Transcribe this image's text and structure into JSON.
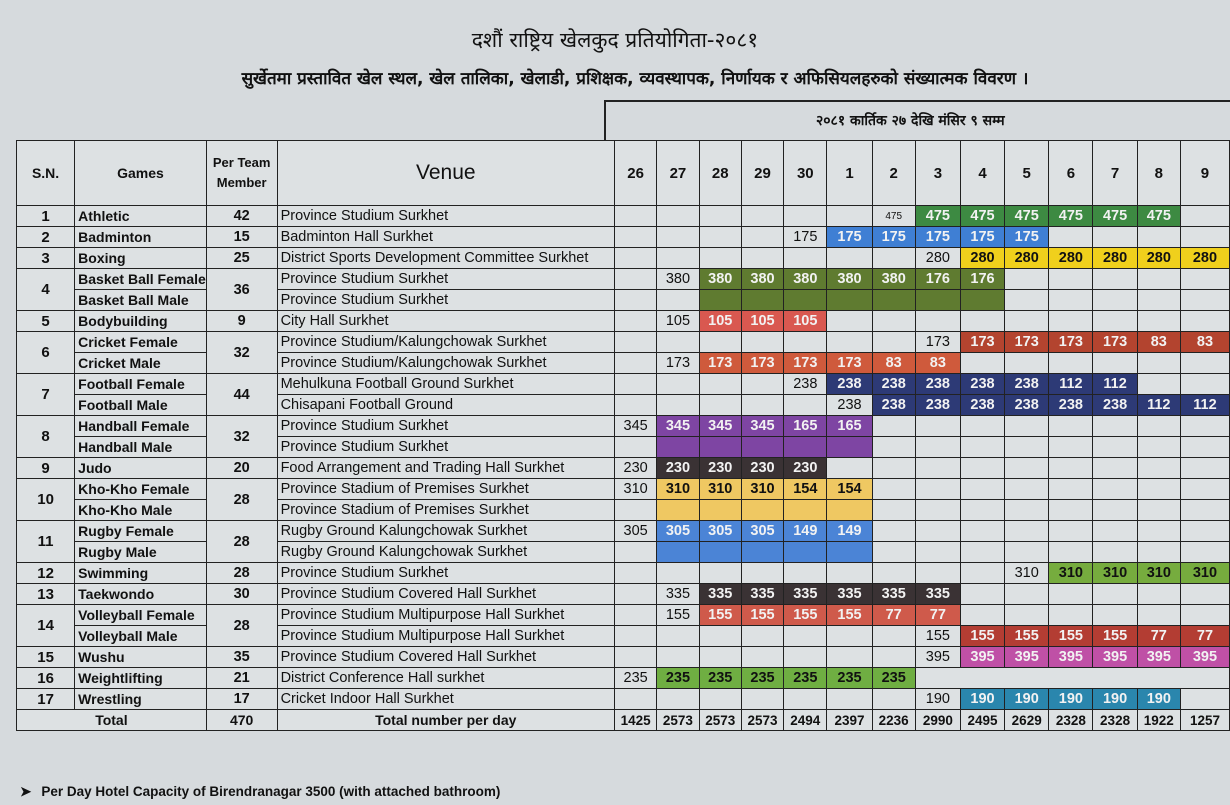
{
  "title": "दशौं राष्ट्रिय खेलकुद प्रतियोगिता-२०८१",
  "subtitle": "सुर्खेतमा प्रस्तावित खेल स्थल, खेल तालिका, खेलाडी, प्रशिक्षक, व्यवस्थापक, निर्णायक र अफिसियलहरुको संख्यात्मक विवरण ।",
  "date_range": "२०८१ कार्तिक २७ देखि मंसिर ९ सम्म",
  "headers": {
    "sn": "S.N.",
    "games": "Games",
    "per_team": "Per Team Member",
    "venue": "Venue"
  },
  "days": [
    "26",
    "27",
    "28",
    "29",
    "30",
    "1",
    "2",
    "3",
    "4",
    "5",
    "6",
    "7",
    "8",
    "9"
  ],
  "colors": {
    "green": "#3d8a42",
    "blue": "#3f7fd4",
    "yellow": "#f0d01c",
    "olive": "#5f7b30",
    "salmon": "#d95850",
    "brick": "#b3442f",
    "orange": "#cf5a3c",
    "navy": "#2d3a76",
    "purple": "#7e45a3",
    "dark": "#3a3234",
    "gold": "#efc862",
    "sky": "#4b84d6",
    "lime": "#76ac3e",
    "red": "#cf5a4b",
    "darkred": "#b33d33",
    "magenta": "#bf50a6",
    "leaf": "#6fae42",
    "teal": "#2a86ad"
  },
  "rows": [
    {
      "sn": "1",
      "game": "Athletic",
      "per_team": "42",
      "venue": "Province Studium Surkhet",
      "values": [
        "",
        "",
        "",
        "",
        "",
        "",
        "475",
        "475",
        "475",
        "475",
        "475",
        "475",
        "475",
        ""
      ],
      "fill": [
        "",
        "",
        "",
        "",
        "",
        "",
        "",
        "green",
        "green",
        "green",
        "green",
        "green",
        "green",
        ""
      ]
    },
    {
      "sn": "2",
      "game": "Badminton",
      "per_team": "15",
      "venue": "Badminton Hall Surkhet",
      "values": [
        "",
        "",
        "",
        "",
        "175",
        "175",
        "175",
        "175",
        "175",
        "175",
        "",
        "",
        "",
        ""
      ],
      "fill": [
        "",
        "",
        "",
        "",
        "",
        "blue",
        "blue",
        "blue",
        "blue",
        "blue",
        "",
        "",
        "",
        ""
      ]
    },
    {
      "sn": "3",
      "game": "Boxing",
      "per_team": "25",
      "venue": "District Sports Development Committee Surkhet",
      "values": [
        "",
        "",
        "",
        "",
        "",
        "",
        "",
        "280",
        "280",
        "280",
        "280",
        "280",
        "280",
        "280"
      ],
      "fill": [
        "",
        "",
        "",
        "",
        "",
        "",
        "",
        "",
        "yellow",
        "yellow",
        "yellow",
        "yellow",
        "yellow",
        "yellow"
      ]
    },
    {
      "sn": "4",
      "game": "Basket Ball Female",
      "per_team": "36",
      "venue": "Province Studium Surkhet",
      "values": [
        "",
        "380",
        "380",
        "380",
        "380",
        "380",
        "380",
        "176",
        "176",
        "",
        "",
        "",
        "",
        ""
      ],
      "fill": [
        "",
        "",
        "olive",
        "olive",
        "olive",
        "olive",
        "olive",
        "olive",
        "olive",
        "",
        "",
        "",
        "",
        ""
      ]
    },
    {
      "game": "Basket Ball Male",
      "venue": "Province Studium Surkhet",
      "values": [
        "",
        "",
        "",
        "",
        "",
        "",
        "",
        "",
        "",
        "",
        "",
        "",
        "",
        ""
      ],
      "fill": [
        "",
        "",
        "olive",
        "olive",
        "olive",
        "olive",
        "olive",
        "olive",
        "olive",
        "",
        "",
        "",
        "",
        ""
      ]
    },
    {
      "sn": "5",
      "game": "Bodybuilding",
      "per_team": "9",
      "venue": "City Hall Surkhet",
      "values": [
        "",
        "105",
        "105",
        "105",
        "105",
        "",
        "",
        "",
        "",
        "",
        "",
        "",
        "",
        ""
      ],
      "fill": [
        "",
        "",
        "salmon",
        "salmon",
        "salmon",
        "",
        "",
        "",
        "",
        "",
        "",
        "",
        "",
        ""
      ]
    },
    {
      "sn": "6",
      "game": "Cricket Female",
      "per_team": "32",
      "venue": "Province Studium/Kalungchowak Surkhet",
      "values": [
        "",
        "",
        "",
        "",
        "",
        "",
        "",
        "173",
        "173",
        "173",
        "173",
        "173",
        "83",
        "83"
      ],
      "fill": [
        "",
        "",
        "",
        "",
        "",
        "",
        "",
        "",
        "brick",
        "brick",
        "brick",
        "brick",
        "brick",
        "brick"
      ]
    },
    {
      "game": "Cricket Male",
      "venue": "Province Studium/Kalungchowak Surkhet",
      "values": [
        "",
        "173",
        "173",
        "173",
        "173",
        "173",
        "83",
        "83",
        "",
        "",
        "",
        "",
        "",
        ""
      ],
      "fill": [
        "",
        "",
        "orange",
        "orange",
        "orange",
        "orange",
        "orange",
        "orange",
        "",
        "",
        "",
        "",
        "",
        ""
      ]
    },
    {
      "sn": "7",
      "game": "Football Female",
      "per_team": "44",
      "venue": "Mehulkuna Football Ground Surkhet",
      "values": [
        "",
        "",
        "",
        "",
        "238",
        "238",
        "238",
        "238",
        "238",
        "238",
        "112",
        "112",
        "",
        ""
      ],
      "fill": [
        "",
        "",
        "",
        "",
        "",
        "navy",
        "navy",
        "navy",
        "navy",
        "navy",
        "navy",
        "navy",
        "",
        ""
      ]
    },
    {
      "game": "Football Male",
      "venue": "Chisapani Football Ground",
      "values": [
        "",
        "",
        "",
        "",
        "",
        "238",
        "238",
        "238",
        "238",
        "238",
        "238",
        "238",
        "112",
        "112"
      ],
      "fill": [
        "",
        "",
        "",
        "",
        "",
        "",
        "navy",
        "navy",
        "navy",
        "navy",
        "navy",
        "navy",
        "navy",
        "navy"
      ]
    },
    {
      "sn": "8",
      "game": "Handball Female",
      "per_team": "32",
      "venue": "Province Studium Surkhet",
      "values": [
        "345",
        "345",
        "345",
        "345",
        "165",
        "165",
        "",
        "",
        "",
        "",
        "",
        "",
        "",
        ""
      ],
      "fill": [
        "",
        "purple",
        "purple",
        "purple",
        "purple",
        "purple",
        "",
        "",
        "",
        "",
        "",
        "",
        "",
        ""
      ]
    },
    {
      "game": "Handball Male",
      "venue": "Province Studium Surkhet",
      "values": [
        "",
        "",
        "",
        "",
        "",
        "",
        "",
        "",
        "",
        "",
        "",
        "",
        "",
        ""
      ],
      "fill": [
        "",
        "purple",
        "purple",
        "purple",
        "purple",
        "purple",
        "",
        "",
        "",
        "",
        "",
        "",
        "",
        ""
      ]
    },
    {
      "sn": "9",
      "game": "Judo",
      "per_team": "20",
      "venue": "Food Arrangement and Trading Hall Surkhet",
      "values": [
        "230",
        "230",
        "230",
        "230",
        "230",
        "",
        "",
        "",
        "",
        "",
        "",
        "",
        "",
        ""
      ],
      "fill": [
        "",
        "dark",
        "dark",
        "dark",
        "dark",
        "",
        "",
        "",
        "",
        "",
        "",
        "",
        "",
        ""
      ]
    },
    {
      "sn": "10",
      "game": "Kho-Kho Female",
      "per_team": "28",
      "venue": "Province Stadium of Premises Surkhet",
      "values": [
        "310",
        "310",
        "310",
        "310",
        "154",
        "154",
        "",
        "",
        "",
        "",
        "",
        "",
        "",
        ""
      ],
      "fill": [
        "",
        "gold",
        "gold",
        "gold",
        "gold",
        "gold",
        "",
        "",
        "",
        "",
        "",
        "",
        "",
        ""
      ]
    },
    {
      "game": "Kho-Kho Male",
      "venue": "Province Stadium of Premises Surkhet",
      "values": [
        "",
        "",
        "",
        "",
        "",
        "",
        "",
        "",
        "",
        "",
        "",
        "",
        "",
        ""
      ],
      "fill": [
        "",
        "gold",
        "gold",
        "gold",
        "gold",
        "gold",
        "",
        "",
        "",
        "",
        "",
        "",
        "",
        ""
      ]
    },
    {
      "sn": "11",
      "game": "Rugby Female",
      "per_team": "28",
      "venue": "Rugby Ground Kalungchowak Surkhet",
      "values": [
        "305",
        "305",
        "305",
        "305",
        "149",
        "149",
        "",
        "",
        "",
        "",
        "",
        "",
        "",
        ""
      ],
      "fill": [
        "",
        "sky",
        "sky",
        "sky",
        "sky",
        "sky",
        "",
        "",
        "",
        "",
        "",
        "",
        "",
        ""
      ]
    },
    {
      "game": "Rugby Male",
      "venue": "Rugby Ground Kalungchowak Surkhet",
      "values": [
        "",
        "",
        "",
        "",
        "",
        "",
        "",
        "",
        "",
        "",
        "",
        "",
        "",
        ""
      ],
      "fill": [
        "",
        "sky",
        "sky",
        "sky",
        "sky",
        "sky",
        "",
        "",
        "",
        "",
        "",
        "",
        "",
        ""
      ]
    },
    {
      "sn": "12",
      "game": "Swimming",
      "per_team": "28",
      "venue": "Province Studium Surkhet",
      "values": [
        "",
        "",
        "",
        "",
        "",
        "",
        "",
        "",
        "",
        "310",
        "310",
        "310",
        "310",
        "310"
      ],
      "fill": [
        "",
        "",
        "",
        "",
        "",
        "",
        "",
        "",
        "",
        "",
        "lime",
        "lime",
        "lime",
        "lime"
      ]
    },
    {
      "sn": "13",
      "game": "Taekwondo",
      "per_team": "30",
      "venue": "Province Studium Covered Hall Surkhet",
      "values": [
        "",
        "335",
        "335",
        "335",
        "335",
        "335",
        "335",
        "335",
        "",
        "",
        "",
        "",
        "",
        ""
      ],
      "fill": [
        "",
        "",
        "dark",
        "dark",
        "dark",
        "dark",
        "dark",
        "dark",
        "",
        "",
        "",
        "",
        "",
        ""
      ]
    },
    {
      "sn": "14",
      "game": "Volleyball Female",
      "per_team": "28",
      "venue": "Province Studium Multipurpose Hall Surkhet",
      "values": [
        "",
        "155",
        "155",
        "155",
        "155",
        "155",
        "77",
        "77",
        "",
        "",
        "",
        "",
        "",
        ""
      ],
      "fill": [
        "",
        "",
        "red",
        "red",
        "red",
        "red",
        "red",
        "red",
        "",
        "",
        "",
        "",
        "",
        ""
      ]
    },
    {
      "game": "Volleyball Male",
      "venue": "Province Studium Multipurpose Hall Surkhet",
      "values": [
        "",
        "",
        "",
        "",
        "",
        "",
        "",
        "155",
        "155",
        "155",
        "155",
        "155",
        "77",
        "77"
      ],
      "fill": [
        "",
        "",
        "",
        "",
        "",
        "",
        "",
        "",
        "darkred",
        "darkred",
        "darkred",
        "darkred",
        "darkred",
        "darkred"
      ]
    },
    {
      "sn": "15",
      "game": "Wushu",
      "per_team": "35",
      "venue": "Province Studium Covered Hall Surkhet",
      "values": [
        "",
        "",
        "",
        "",
        "",
        "",
        "",
        "395",
        "395",
        "395",
        "395",
        "395",
        "395",
        "395"
      ],
      "fill": [
        "",
        "",
        "",
        "",
        "",
        "",
        "",
        "",
        "magenta",
        "magenta",
        "magenta",
        "magenta",
        "magenta",
        "magenta"
      ]
    },
    {
      "sn": "16",
      "game": "Weightlifting",
      "per_team": "21",
      "venue": "District Conference Hall surkhet",
      "values": [
        "235",
        "235",
        "235",
        "235",
        "235",
        "235",
        "235",
        "",
        "",
        "",
        "",
        "",
        "",
        ""
      ],
      "fill": [
        "",
        "leaf",
        "leaf",
        "leaf",
        "leaf",
        "leaf",
        "leaf",
        "",
        "",
        "",
        "",
        "",
        "",
        ""
      ]
    },
    {
      "sn": "17",
      "game": "Wrestling",
      "per_team": "17",
      "venue": "Cricket Indoor Hall Surkhet",
      "values": [
        "",
        "",
        "",
        "",
        "",
        "",
        "",
        "190",
        "190",
        "190",
        "190",
        "190",
        "190",
        ""
      ],
      "fill": [
        "",
        "",
        "",
        "",
        "",
        "",
        "",
        "",
        "teal",
        "teal",
        "teal",
        "teal",
        "teal",
        ""
      ]
    }
  ],
  "total": {
    "label": "Total",
    "per_team": "470",
    "venue": "Total number per day",
    "values": [
      "1425",
      "2573",
      "2573",
      "2573",
      "2494",
      "2397",
      "2236",
      "2990",
      "2495",
      "2629",
      "2328",
      "2328",
      "1922",
      "1257"
    ]
  },
  "note": "Per Day Hotel Capacity of Birendranagar 3500 (with attached bathroom)"
}
